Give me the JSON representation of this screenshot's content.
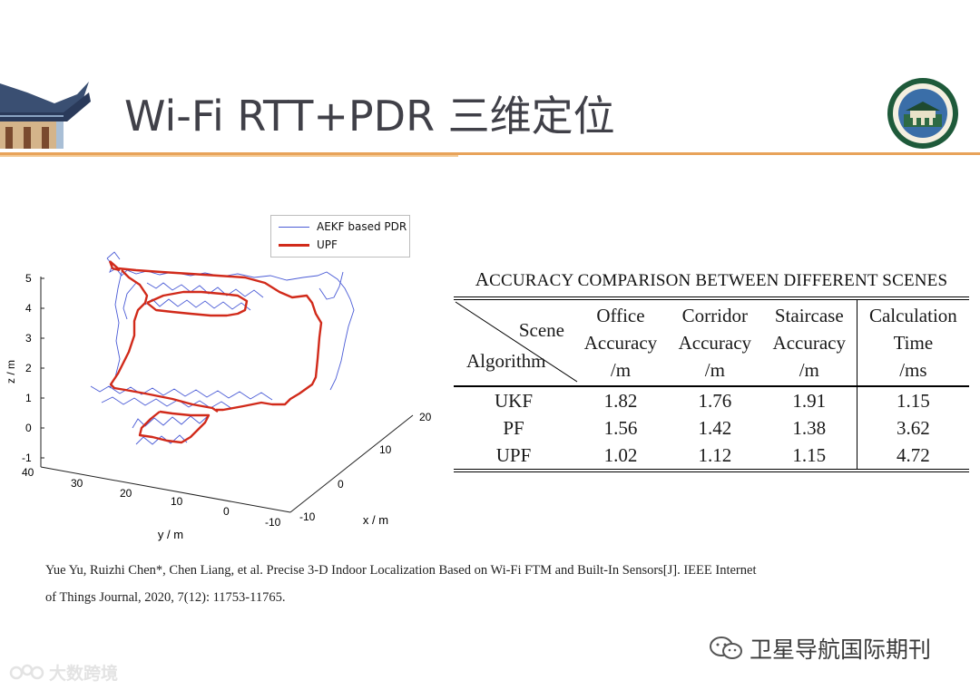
{
  "slide": {
    "title": "Wi-Fi RTT+PDR 三维定位",
    "accent_color": "#e8a35a"
  },
  "plot": {
    "legend": [
      {
        "label": "AEKF based PDR",
        "color": "#4a5bd6"
      },
      {
        "label": "UPF",
        "color": "#d12a1a"
      }
    ],
    "z_axis": {
      "label": "z / m",
      "ticks": [
        "-1",
        "0",
        "1",
        "2",
        "3",
        "4",
        "5"
      ]
    },
    "y_axis": {
      "label": "y / m",
      "ticks": [
        "40",
        "30",
        "20",
        "10",
        "0",
        "-10"
      ]
    },
    "x_axis": {
      "label": "x / m",
      "ticks": [
        "-10",
        "0",
        "10",
        "20"
      ]
    }
  },
  "table": {
    "caption_first": "A",
    "caption_rest": "CCURACY COMPARISON BETWEEN DIFFERENT SCENES",
    "corner_top": "Scene",
    "corner_bottom": "Algorithm",
    "headers": [
      [
        "Office",
        "Accuracy",
        "/m"
      ],
      [
        "Corridor",
        "Accuracy",
        "/m"
      ],
      [
        "Staircase",
        "Accuracy",
        "/m"
      ],
      [
        "Calculation",
        "Time",
        "/ms"
      ]
    ],
    "rows": [
      {
        "algo": "UKF",
        "vals": [
          "1.82",
          "1.76",
          "1.91",
          "1.15"
        ]
      },
      {
        "algo": "PF",
        "vals": [
          "1.56",
          "1.42",
          "1.38",
          "3.62"
        ]
      },
      {
        "algo": "UPF",
        "vals": [
          "1.02",
          "1.12",
          "1.15",
          "4.72"
        ]
      }
    ]
  },
  "citation": {
    "line1": "Yue Yu, Ruizhi Chen*, Chen Liang, et al. Precise 3-D Indoor Localization Based on Wi-Fi FTM and Built-In Sensors[J]. IEEE Internet",
    "line2": "of Things Journal, 2020, 7(12): 11753-11765."
  },
  "watermarks": {
    "right": "卫星导航国际期刊",
    "left": "大数跨境"
  }
}
